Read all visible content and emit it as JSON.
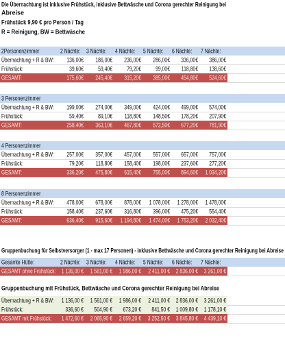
{
  "header": {
    "title": [
      "Die Übernachtung ist inklusive Frühstück, inklusive Bettwäsche und Corona gerechter Reinigung bei",
      "Abreise"
    ],
    "breakfast": "Frühstück 9,90 € pro Person / Tag",
    "legend": "R = Reinigung, BW = Bettwäsche"
  },
  "nights": [
    "2 Nächte:",
    "3 Nächte:",
    "4 Nächte:",
    "5 Nächte:",
    "6 Nächte:",
    "7 Nächte:"
  ],
  "rooms": [
    {
      "name": "2Personenzimmer",
      "rows": [
        {
          "label": "Übernachtung + R & BW:",
          "values": [
            "136,00€",
            "186,00€",
            "236,00€",
            "286,00€",
            "336,00€",
            "386,00€"
          ]
        },
        {
          "label": "Frühstück:",
          "values": [
            "39,60€",
            "59,40€",
            "79,20€",
            "99,00€",
            "118,80€",
            "138,60€"
          ]
        },
        {
          "label": "GESAMT:",
          "values": [
            "175,60€",
            "245,40€",
            "315,20€",
            "385,00€",
            "454,80€",
            "524,60€"
          ]
        }
      ]
    },
    {
      "name": "3 Personenzimmer",
      "rows": [
        {
          "label": "Übernachtung + R & BW:",
          "values": [
            "199,00€",
            "274,00€",
            "349,00€",
            "424,00€",
            "499,00€",
            "574,00€"
          ]
        },
        {
          "label": "Frühstück:",
          "values": [
            "59,40€",
            "89,10€",
            "118,80€",
            "148,50€",
            "178,20€",
            "207,90€"
          ]
        },
        {
          "label": "GESAMT:",
          "values": [
            "258,40€",
            "363,10€",
            "467,80€",
            "572,50€",
            "677,20€",
            "781,90€"
          ]
        }
      ]
    },
    {
      "name": "4 Personenzimmer",
      "rows": [
        {
          "label": "Übernachtung + R & BW:",
          "values": [
            "257,00€",
            "357,00€",
            "457,00€",
            "557,00€",
            "657,00€",
            "757,00€"
          ]
        },
        {
          "label": "Frühstück:",
          "values": [
            "79,20€",
            "118,80€",
            "158,40€",
            "198,00€",
            "237,60€",
            "277,20€"
          ]
        },
        {
          "label": "GESAMT:",
          "values": [
            "336,20€",
            "475,80€",
            "615,40€",
            "755,00€",
            "894,60€",
            "1 034,20€"
          ]
        }
      ]
    },
    {
      "name": "8 Personenzimmer",
      "rows": [
        {
          "label": "Übernachtung + R & BW:",
          "values": [
            "478,00€",
            "678,00€",
            "878,00€",
            "1 078,00€",
            "1 278,00€",
            "1 478,00€"
          ]
        },
        {
          "label": "Frühstück:",
          "values": [
            "158,40€",
            "237,60€",
            "316,80€",
            "396,00€",
            "475,20€",
            "554,40€"
          ]
        },
        {
          "label": "GESAMT:",
          "values": [
            "636,40€",
            "915,60€",
            "1 194,80€",
            "1 474,00€",
            "1 753,20€",
            "2 032,40€"
          ]
        }
      ]
    }
  ],
  "groups": [
    {
      "title": "Gruppenbuchung für Selbstversorger (1 - max 17 Personen) - inklusive Bettwäsche und Corona gerechter Reinigung bei Abreise",
      "header": [
        "Gesamte Hütte:",
        "2 Nächte:",
        "3 Nächte:",
        "4 Nächte:",
        "5 Nächte:",
        "6 Nächte:",
        "7 Nächte:"
      ],
      "rows": [
        {
          "label": "GESAMT ohne Frühstück:",
          "values": [
            "1 136,00 €",
            "1 561,00 €",
            "1 986,00 €",
            "2 411,00 €",
            "2 836,00 €",
            "3 261,00 €"
          ]
        }
      ]
    },
    {
      "title": "Gruppenbuchung mit Frühstück, Bettwäsche und Corona gerechter Reinigung bei Abreise",
      "rows": [
        {
          "label": "Übernachtung + R & BW:",
          "values": [
            "1 136,00 €",
            "1 561,00 €",
            "1 986,00 €",
            "2 411,00 €",
            "2 836,00 €",
            "3 261,00 €"
          ]
        },
        {
          "label": "Frühstück:",
          "values": [
            "336,60 €",
            "504,90 €",
            "673,20 €",
            "841,50 €",
            "1 009,80 €",
            "1 178,10 €"
          ]
        },
        {
          "label": "GESAMT mit Frühstück:",
          "values": [
            "1 472,60 €",
            "2 065,90 €",
            "2 659,20 €",
            "3 252,50 €",
            "3 845,80 €",
            "4 439,10 €"
          ]
        }
      ]
    }
  ]
}
